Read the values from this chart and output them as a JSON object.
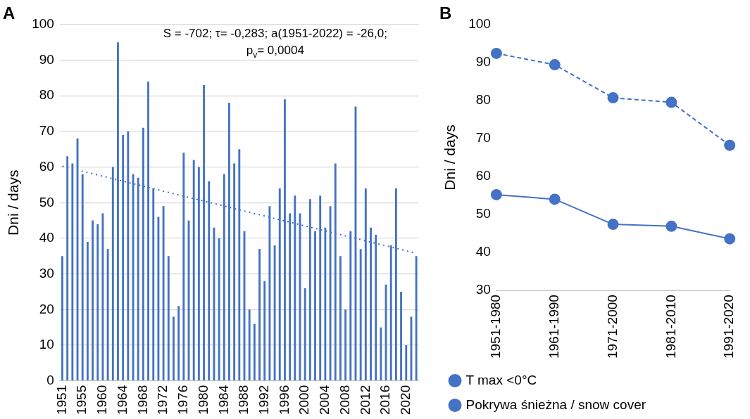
{
  "chart_data": [
    {
      "type": "bar",
      "title": "A",
      "ylabel": "Dni / days",
      "categories": [
        "1951",
        null,
        null,
        null,
        "1955",
        null,
        null,
        null,
        "1960",
        null,
        null,
        null,
        "1964",
        null,
        null,
        null,
        "1968",
        null,
        null,
        null,
        "1972",
        null,
        null,
        null,
        "1976",
        null,
        null,
        null,
        "1980",
        null,
        null,
        null,
        "1984",
        null,
        null,
        null,
        "1988",
        null,
        null,
        null,
        "1992",
        null,
        null,
        null,
        "1996",
        null,
        null,
        null,
        "2000",
        null,
        null,
        null,
        "2004",
        null,
        null,
        null,
        "2008",
        null,
        null,
        null,
        "2012",
        null,
        null,
        null,
        "2016",
        null,
        null,
        null,
        "2020",
        null,
        null
      ],
      "series": [
        {
          "color": "#4472c4",
          "values": [
            35,
            63,
            61,
            68,
            58,
            39,
            45,
            44,
            47,
            37,
            60,
            95,
            69,
            70,
            58,
            57,
            71,
            84,
            54,
            46,
            49,
            35,
            18,
            21,
            64,
            45,
            62,
            60,
            83,
            56,
            43,
            40,
            58,
            78,
            61,
            65,
            42,
            20,
            16,
            37,
            28,
            49,
            38,
            54,
            79,
            47,
            52,
            47,
            26,
            51,
            42,
            52,
            43,
            49,
            61,
            35,
            20,
            42,
            77,
            37,
            54,
            43,
            41,
            15,
            27,
            38,
            54,
            25,
            10,
            18,
            35
          ]
        },
        {
          "type": "line",
          "color": "#4472c4",
          "line_style": "dotted",
          "marker": "none",
          "values": [
            60.2,
            null,
            null,
            null,
            null,
            null,
            null,
            null,
            null,
            null,
            null,
            null,
            null,
            null,
            null,
            null,
            null,
            null,
            null,
            null,
            null,
            null,
            null,
            null,
            null,
            null,
            null,
            null,
            null,
            null,
            null,
            null,
            null,
            null,
            null,
            null,
            null,
            null,
            null,
            null,
            null,
            null,
            null,
            null,
            null,
            null,
            null,
            null,
            null,
            null,
            null,
            null,
            null,
            null,
            null,
            null,
            null,
            null,
            null,
            null,
            null,
            null,
            null,
            null,
            null,
            null,
            null,
            null,
            null,
            null,
            35.8
          ]
        }
      ],
      "ylim": [
        0,
        100
      ],
      "yticks": [
        0,
        10,
        20,
        30,
        40,
        50,
        60,
        70,
        80,
        90,
        100
      ],
      "grid": "y",
      "legend": false,
      "annotations": [
        "S = -702; τ= -0,283; a(1951-2022) = -26,0;",
        "p$_{v}$= 0,0004"
      ]
    },
    {
      "type": "line",
      "title": "B",
      "ylabel": "Dni / days",
      "categories": [
        "1951-1980",
        "1961-1990",
        "1971-2000",
        "1981-2010",
        "1991-2020"
      ],
      "series": [
        {
          "name": "T max <0°C",
          "color": "#4472c4",
          "line_style": "solid",
          "marker": "circle",
          "values": [
            55.2,
            54.0,
            47.4,
            46.9,
            43.6
          ]
        },
        {
          "name": "Pokrywa śnieżna / snow cover",
          "color": "#4472c4",
          "line_style": "dashed",
          "marker": "circle",
          "values": [
            92.4,
            89.4,
            80.7,
            79.5,
            68.2
          ]
        }
      ],
      "ylim": [
        30,
        100
      ],
      "yticks": [
        30,
        40,
        50,
        60,
        70,
        80,
        90,
        100
      ],
      "grid": false,
      "legend": "bottom"
    }
  ]
}
